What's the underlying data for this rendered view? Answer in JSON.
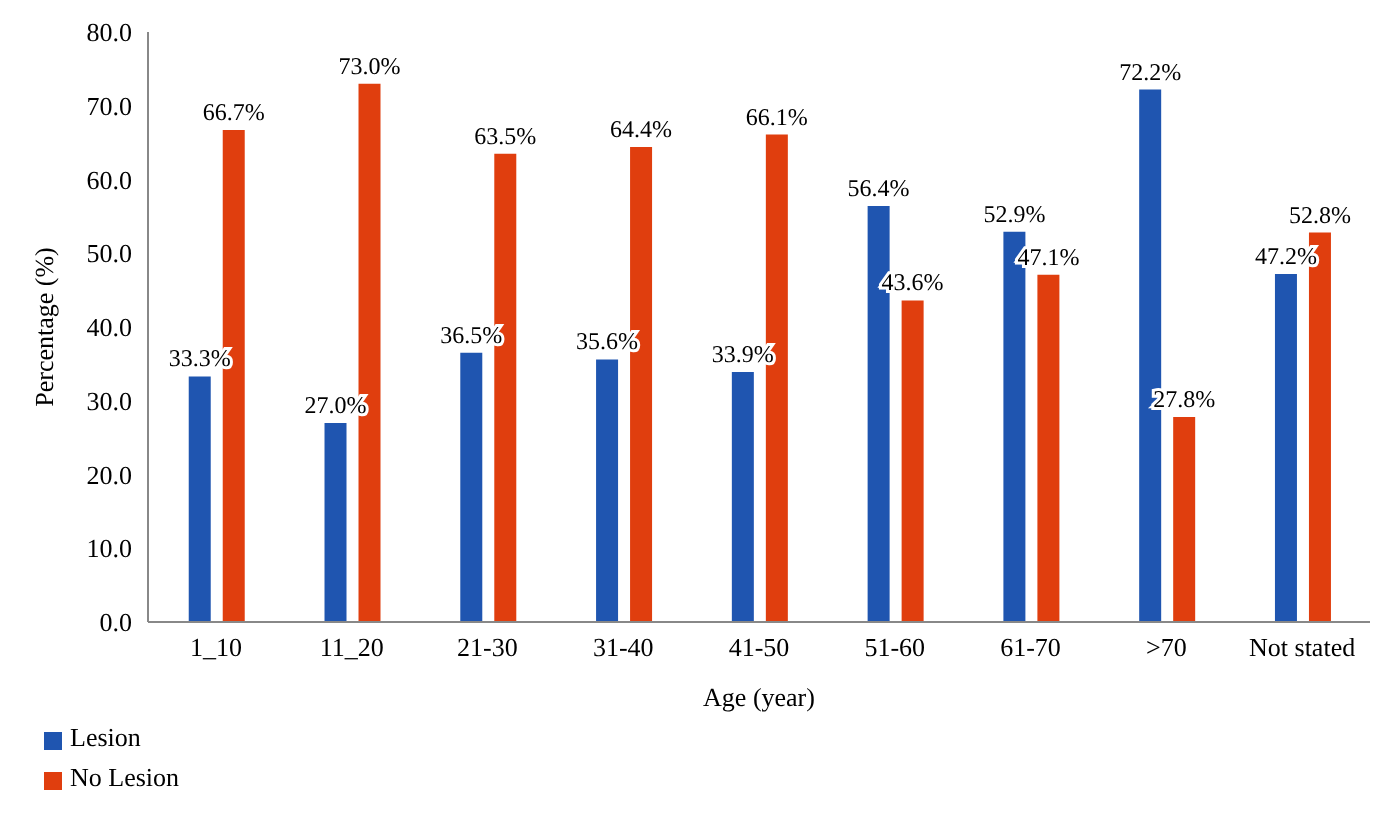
{
  "chart_data": {
    "type": "bar",
    "xlabel": "Age (year)",
    "ylabel": "Percentage (%)",
    "categories": [
      "1_10",
      "11_20",
      "21-30",
      "31-40",
      "41-50",
      "51-60",
      "61-70",
      ">70",
      "Not stated"
    ],
    "series": [
      {
        "name": "Lesion",
        "color": "#1f55b0",
        "values": [
          33.3,
          27.0,
          36.5,
          35.6,
          33.9,
          56.4,
          52.9,
          72.2,
          47.2
        ],
        "value_labels": [
          "33.3%",
          "27.0%",
          "36.5%",
          "35.6%",
          "33.9%",
          "56.4%",
          "52.9%",
          "72.2%",
          "47.2%"
        ]
      },
      {
        "name": "No Lesion",
        "color": "#e03e0e",
        "values": [
          66.7,
          73.0,
          63.5,
          64.4,
          66.1,
          43.6,
          47.1,
          27.8,
          52.8
        ],
        "value_labels": [
          "66.7%",
          "73.0%",
          "63.5%",
          "64.4%",
          "66.1%",
          "43.6%",
          "47.1%",
          "27.8%",
          "52.8%"
        ]
      }
    ],
    "ylim": [
      0,
      80
    ],
    "yticks": [
      {
        "value": 0,
        "label": "0.0"
      },
      {
        "value": 10,
        "label": "10.0"
      },
      {
        "value": 20,
        "label": "20.0"
      },
      {
        "value": 30,
        "label": "30.0"
      },
      {
        "value": 40,
        "label": "40.0"
      },
      {
        "value": 50,
        "label": "50.0"
      },
      {
        "value": 60,
        "label": "60.0"
      },
      {
        "value": 70,
        "label": "70.0"
      },
      {
        "value": 80,
        "label": "80.0"
      }
    ],
    "grid": false,
    "legend": "bottom left"
  }
}
